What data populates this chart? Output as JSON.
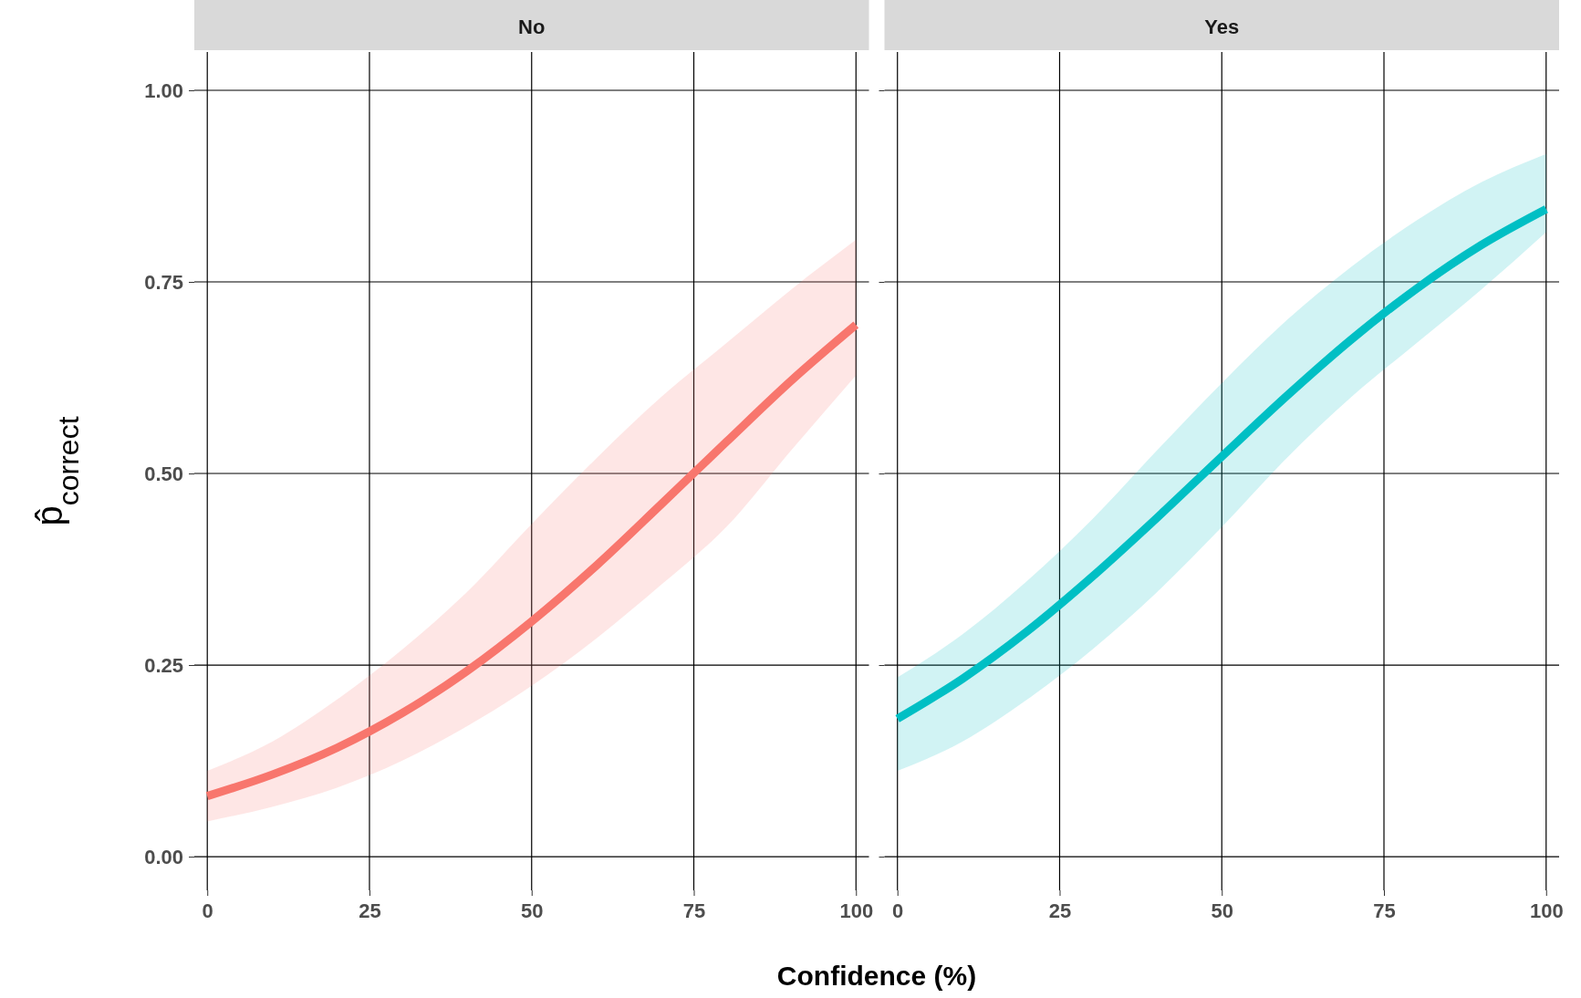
{
  "chart_data": [
    {
      "type": "line",
      "title": "No",
      "ylabel": "p̂$_{correct}$",
      "xlabel": "Confidence (%)",
      "x": [
        0,
        10,
        20,
        30,
        40,
        50,
        60,
        70,
        80,
        90,
        100
      ],
      "xlim": [
        -2,
        102
      ],
      "xticks": [
        0,
        25,
        50,
        75,
        100
      ],
      "ylim": [
        -0.044,
        1.05
      ],
      "yticks": [
        {
          "value": 0,
          "label": "0.00"
        },
        {
          "value": 0.25,
          "label": "0.25"
        },
        {
          "value": 0.5,
          "label": "0.50"
        },
        {
          "value": 0.75,
          "label": "0.75"
        },
        {
          "value": 1,
          "label": "1.00"
        }
      ],
      "grid": true,
      "series": [
        {
          "color": "#f8766d",
          "values": [
            0.079,
            0.107,
            0.142,
            0.187,
            0.242,
            0.307,
            0.38,
            0.46,
            0.541,
            0.621,
            0.694
          ],
          "lower": [
            0.046,
            0.065,
            0.09,
            0.125,
            0.17,
            0.223,
            0.285,
            0.355,
            0.43,
            0.53,
            0.628
          ],
          "upper": [
            0.112,
            0.15,
            0.205,
            0.27,
            0.345,
            0.434,
            0.52,
            0.6,
            0.67,
            0.74,
            0.805
          ]
        }
      ]
    },
    {
      "type": "line",
      "title": "Yes",
      "x": [
        0,
        10,
        20,
        30,
        40,
        50,
        60,
        70,
        80,
        90,
        100
      ],
      "xlim": [
        -2,
        102
      ],
      "xticks": [
        0,
        25,
        50,
        75,
        100
      ],
      "ylim": [
        -0.044,
        1.05
      ],
      "yticks": [
        {
          "value": 0,
          "label": null
        },
        {
          "value": 0.25,
          "label": null
        },
        {
          "value": 0.5,
          "label": null
        },
        {
          "value": 0.75,
          "label": null
        },
        {
          "value": 1,
          "label": null
        }
      ],
      "grid": true,
      "tick_labels": "x",
      "series": [
        {
          "color": "#00bfc4",
          "values": [
            0.18,
            0.232,
            0.294,
            0.365,
            0.442,
            0.522,
            0.601,
            0.675,
            0.741,
            0.798,
            0.845
          ],
          "lower": [
            0.112,
            0.15,
            0.205,
            0.27,
            0.345,
            0.43,
            0.52,
            0.6,
            0.67,
            0.74,
            0.815
          ],
          "upper": [
            0.234,
            0.29,
            0.36,
            0.44,
            0.53,
            0.618,
            0.7,
            0.77,
            0.83,
            0.88,
            0.917
          ]
        }
      ]
    }
  ]
}
